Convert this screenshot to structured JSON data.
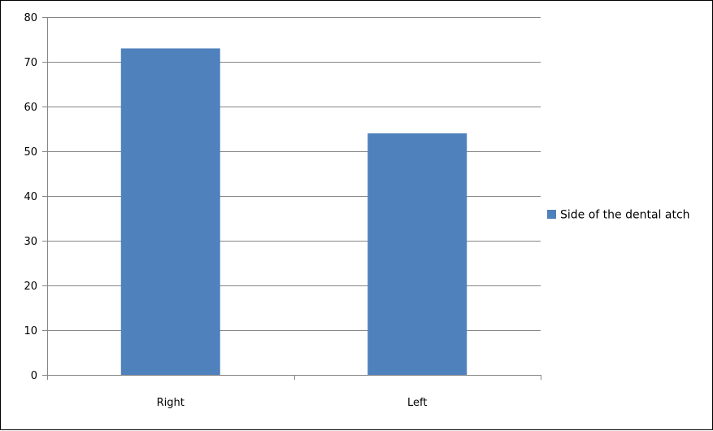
{
  "chart_data": {
    "type": "bar",
    "categories": [
      "Right",
      "Left"
    ],
    "series": [
      {
        "name": "Side of the dental atch",
        "values": [
          73,
          54
        ],
        "color": "#4F81BD"
      }
    ],
    "title": "",
    "xlabel": "",
    "ylabel": "",
    "ylim": [
      0,
      80
    ],
    "yticks": [
      "0",
      "10",
      "20",
      "30",
      "40",
      "50",
      "60",
      "70",
      "80"
    ],
    "grid": true,
    "legend": "right",
    "colors": {
      "grid": "#868686",
      "axis": "#868686",
      "border": "#000000"
    }
  }
}
